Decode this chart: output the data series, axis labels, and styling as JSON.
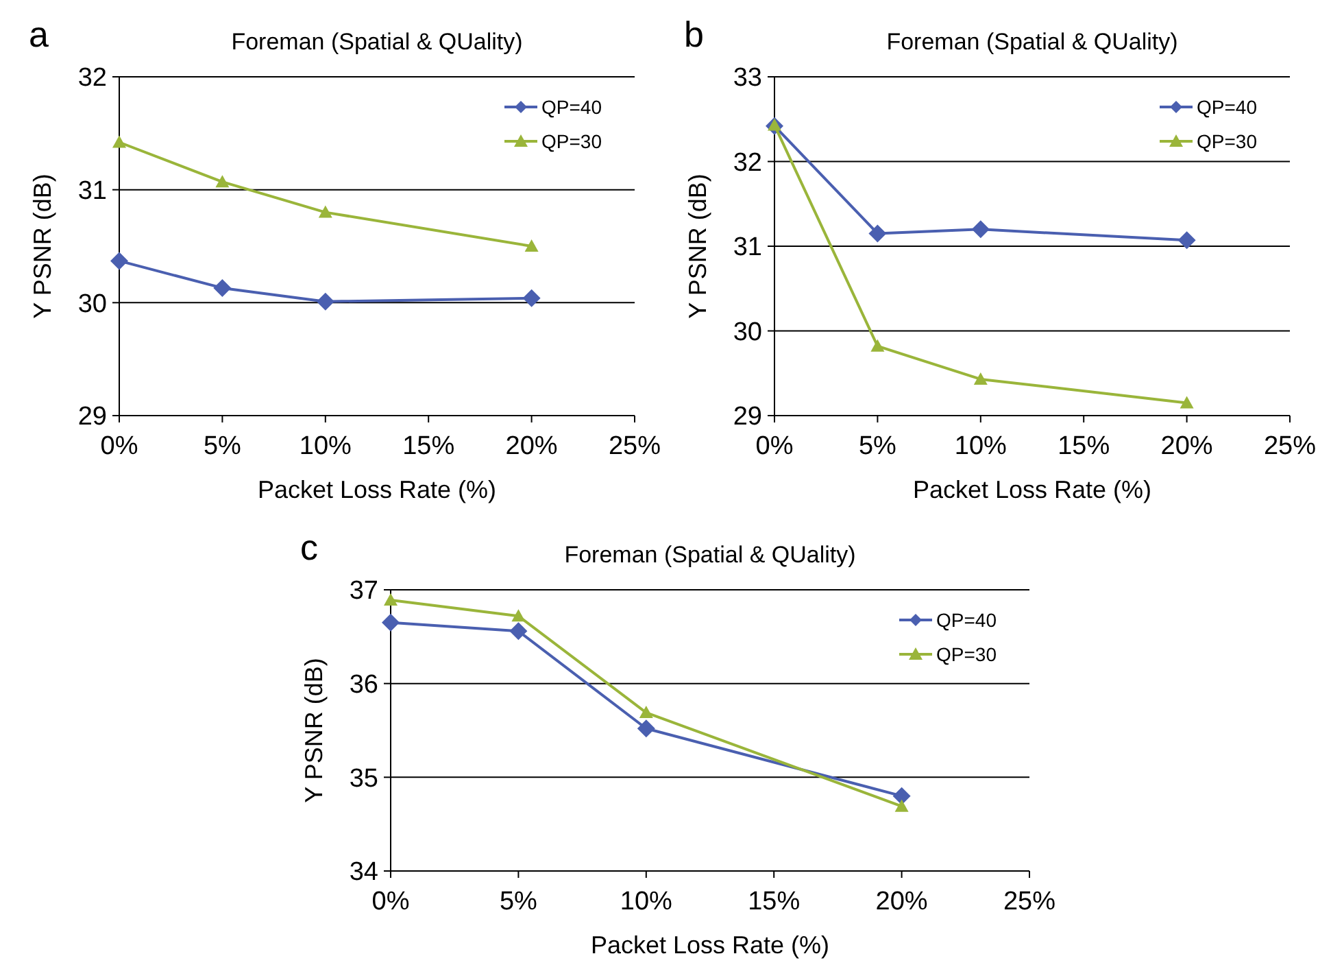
{
  "chart_data": [
    {
      "type": "line",
      "title": "Foreman (Spatial & QUality)",
      "xlabel": "Packet Loss Rate (%)",
      "ylabel": "Y PSNR (dB)",
      "annotations": [
        "a"
      ],
      "x": [
        0,
        5,
        10,
        20
      ],
      "xlim": [
        0,
        25
      ],
      "ylim": [
        29,
        32
      ],
      "xticks": [
        {
          "value": 0,
          "label": "0%"
        },
        {
          "value": 5,
          "label": "5%"
        },
        {
          "value": 10,
          "label": "10%"
        },
        {
          "value": 15,
          "label": "15%"
        },
        {
          "value": 20,
          "label": "20%"
        },
        {
          "value": 25,
          "label": "25%"
        }
      ],
      "yticks": [
        29,
        30,
        31,
        32
      ],
      "grid": "y",
      "legend": "top right",
      "series": [
        {
          "name": "QP=40",
          "color": "#4a5fb0",
          "marker": "diamond",
          "values": [
            30.37,
            30.13,
            30.01,
            30.04
          ]
        },
        {
          "name": "QP=30",
          "color": "#9ab53a",
          "marker": "triangle",
          "values": [
            31.42,
            31.07,
            30.8,
            30.5
          ]
        }
      ]
    },
    {
      "type": "line",
      "title": "Foreman (Spatial & QUality)",
      "xlabel": "Packet Loss Rate (%)",
      "ylabel": "Y PSNR (dB)",
      "annotations": [
        "b"
      ],
      "x": [
        0,
        5,
        10,
        20
      ],
      "xlim": [
        0,
        25
      ],
      "ylim": [
        29,
        33
      ],
      "xticks": [
        {
          "value": 0,
          "label": "0%"
        },
        {
          "value": 5,
          "label": "5%"
        },
        {
          "value": 10,
          "label": "10%"
        },
        {
          "value": 15,
          "label": "15%"
        },
        {
          "value": 20,
          "label": "20%"
        },
        {
          "value": 25,
          "label": "25%"
        }
      ],
      "yticks": [
        29,
        30,
        31,
        32,
        33
      ],
      "grid": "y",
      "legend": "top right",
      "series": [
        {
          "name": "QP=40",
          "color": "#4a5fb0",
          "marker": "diamond",
          "values": [
            32.42,
            31.15,
            31.2,
            31.07
          ]
        },
        {
          "name": "QP=30",
          "color": "#9ab53a",
          "marker": "triangle",
          "values": [
            32.43,
            29.82,
            29.43,
            29.15
          ]
        }
      ]
    },
    {
      "type": "line",
      "title": "Foreman (Spatial & QUality)",
      "xlabel": "Packet Loss Rate (%)",
      "ylabel": "Y PSNR (dB)",
      "annotations": [
        "c"
      ],
      "x": [
        0,
        5,
        10,
        20
      ],
      "xlim": [
        0,
        25
      ],
      "ylim": [
        34,
        37
      ],
      "xticks": [
        {
          "value": 0,
          "label": "0%"
        },
        {
          "value": 5,
          "label": "5%"
        },
        {
          "value": 10,
          "label": "10%"
        },
        {
          "value": 15,
          "label": "15%"
        },
        {
          "value": 20,
          "label": "20%"
        },
        {
          "value": 25,
          "label": "25%"
        }
      ],
      "yticks": [
        34,
        35,
        36,
        37
      ],
      "grid": "y",
      "legend": "top right",
      "series": [
        {
          "name": "QP=40",
          "color": "#4a5fb0",
          "marker": "diamond",
          "values": [
            36.65,
            36.56,
            35.52,
            34.8
          ]
        },
        {
          "name": "QP=30",
          "color": "#9ab53a",
          "marker": "triangle",
          "values": [
            36.89,
            36.72,
            35.69,
            34.69
          ]
        }
      ]
    }
  ]
}
